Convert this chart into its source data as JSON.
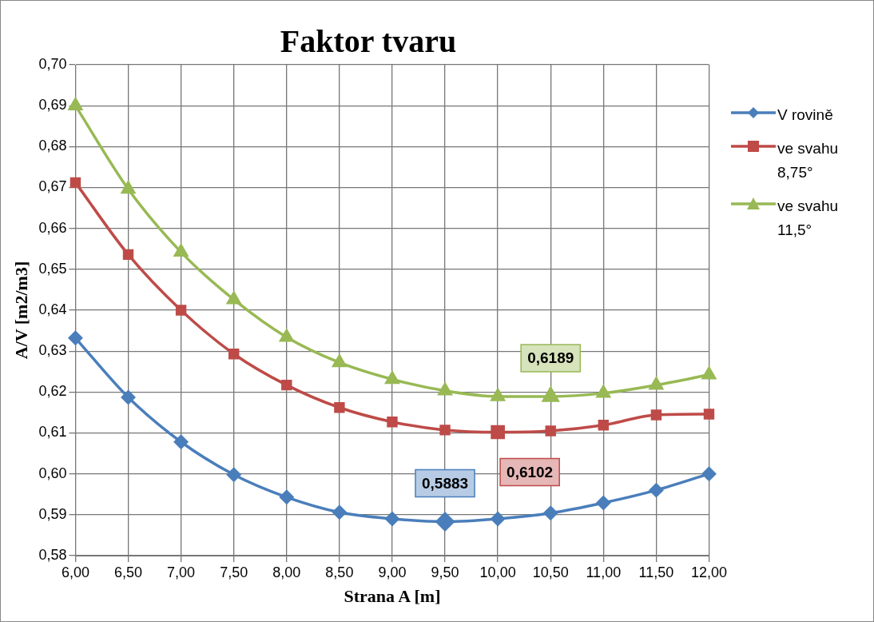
{
  "chart_data": {
    "type": "line",
    "title": "Faktor tvaru",
    "xlabel": "Strana A [m]",
    "ylabel": "A/V [m2/m3]",
    "categories": [
      "6,00",
      "6,50",
      "7,00",
      "7,50",
      "8,00",
      "8,50",
      "9,00",
      "9,50",
      "10,00",
      "10,50",
      "11,00",
      "11,50",
      "12,00"
    ],
    "series": [
      {
        "name": "V rovině",
        "color": "#4a7ebb",
        "marker": "diamond",
        "values": [
          0.6332,
          0.6187,
          0.6078,
          0.5998,
          0.5943,
          0.5906,
          0.589,
          0.5883,
          0.589,
          0.5904,
          0.5929,
          0.596,
          0.6
        ]
      },
      {
        "name": "ve svahu 8,75°",
        "color": "#be4b48",
        "marker": "square",
        "values": [
          0.6712,
          0.6536,
          0.64,
          0.6293,
          0.6217,
          0.6162,
          0.6127,
          0.6107,
          0.6102,
          0.6105,
          0.6119,
          0.6144,
          0.6146
        ]
      },
      {
        "name": "ve svahu 11,5°",
        "color": "#98b954",
        "marker": "triangle",
        "values": [
          0.69,
          0.6696,
          0.6542,
          0.6426,
          0.6334,
          0.6272,
          0.6231,
          0.6203,
          0.6189,
          0.6189,
          0.6197,
          0.6217,
          0.6242
        ]
      }
    ],
    "ylim": [
      0.58,
      0.7
    ],
    "yticks": [
      {
        "value": 0.58,
        "label": "0,58"
      },
      {
        "value": 0.59,
        "label": "0,59"
      },
      {
        "value": 0.6,
        "label": "0,60"
      },
      {
        "value": 0.61,
        "label": "0,61"
      },
      {
        "value": 0.62,
        "label": "0,62"
      },
      {
        "value": 0.63,
        "label": "0,63"
      },
      {
        "value": 0.64,
        "label": "0,64"
      },
      {
        "value": 0.65,
        "label": "0,65"
      },
      {
        "value": 0.66,
        "label": "0,66"
      },
      {
        "value": 0.67,
        "label": "0,67"
      },
      {
        "value": 0.68,
        "label": "0,68"
      },
      {
        "value": 0.69,
        "label": "0,69"
      },
      {
        "value": 0.7,
        "label": "0,70"
      }
    ],
    "annotations": [
      {
        "text": "0,5883",
        "x": "9,50",
        "y": 0.5883
      },
      {
        "text": "0,6102",
        "x": "10,00",
        "y": 0.6102
      },
      {
        "text": "0,6189",
        "x": "10,50",
        "y": 0.6189
      }
    ],
    "grid": true,
    "legend": "right"
  }
}
